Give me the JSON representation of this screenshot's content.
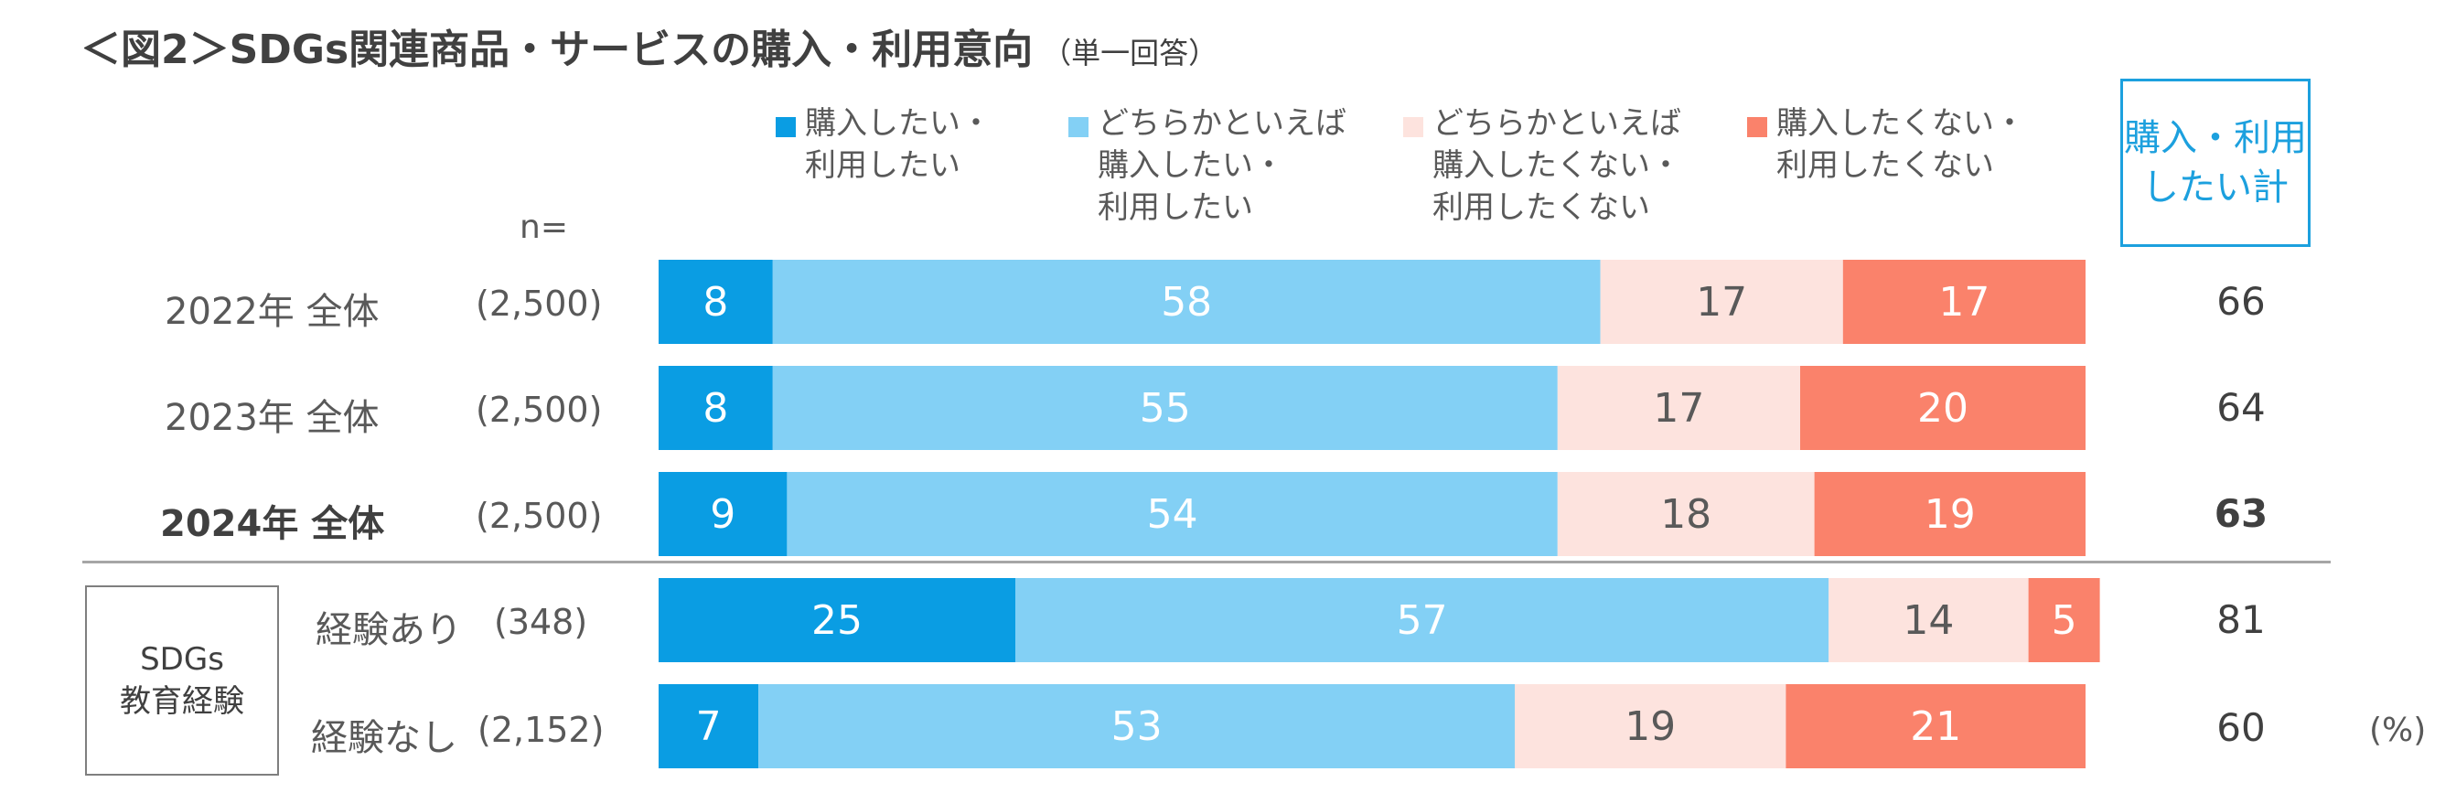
{
  "title": "＜図2＞SDGs関連商品・サービスの購入・利用意向",
  "subtitle": "（単一回答）",
  "n_label": "n=",
  "unit": "(%)",
  "total_header": "購入・利用\nしたい計",
  "group_label": "SDGs\n教育経験",
  "colors": {
    "s1": "#0a9de3",
    "s2": "#83d0f5",
    "s3": "#fde3de",
    "s4": "#fa826b",
    "box_accent": "#1ca0de"
  },
  "legend": [
    {
      "label": "購入したい・\n利用したい"
    },
    {
      "label": "どちらかといえば\n購入したい・\n利用したい"
    },
    {
      "label": "どちらかといえば\n購入したくない・\n利用したくない"
    },
    {
      "label": "購入したくない・\n利用したくない"
    }
  ],
  "rows": [
    {
      "label": "2022年 全体",
      "n": "(2,500)",
      "total": "66"
    },
    {
      "label": "2023年 全体",
      "n": "(2,500)",
      "total": "64"
    },
    {
      "label": "2024年 全体",
      "n": "(2,500)",
      "total": "63"
    },
    {
      "label": "経験あり",
      "n": "(348)",
      "total": "81"
    },
    {
      "label": "経験なし",
      "n": "(2,152)",
      "total": "60"
    }
  ],
  "chart_data": {
    "type": "bar",
    "stacked": true,
    "orientation": "horizontal",
    "categories": [
      "2022年 全体",
      "2023年 全体",
      "2024年 全体",
      "経験あり",
      "経験なし"
    ],
    "series": [
      {
        "name": "購入したい・利用したい",
        "values": [
          8,
          8,
          9,
          25,
          7
        ]
      },
      {
        "name": "どちらかといえば購入したい・利用したい",
        "values": [
          58,
          55,
          54,
          57,
          53
        ]
      },
      {
        "name": "どちらかといえば購入したくない・利用したくない",
        "values": [
          17,
          17,
          18,
          14,
          19
        ]
      },
      {
        "name": "購入したくない・利用したくない",
        "values": [
          17,
          20,
          19,
          5,
          21
        ]
      }
    ],
    "xlim": [
      0,
      100
    ],
    "unit": "%"
  }
}
